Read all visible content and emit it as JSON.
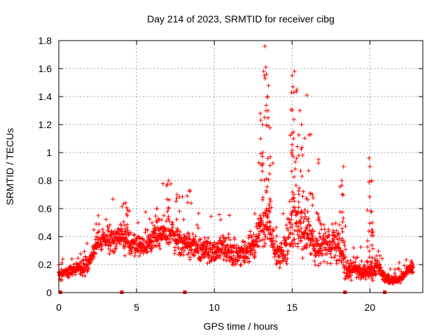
{
  "chart_data": {
    "type": "scatter",
    "title": "Day 214 of 2023, SRMTID for receiver cibg",
    "xlabel": "GPS time / hours",
    "ylabel": "SRMTID / TECUs",
    "xlim": [
      0,
      23.4
    ],
    "ylim": [
      0,
      1.8
    ],
    "xticks": [
      0,
      5,
      10,
      15,
      20
    ],
    "yticks": [
      0,
      0.2,
      0.4,
      0.6,
      0.8,
      1,
      1.2,
      1.4,
      1.6,
      1.8
    ],
    "ytick_labels": [
      "0",
      "0.2",
      "0.4",
      "0.6",
      "0.8",
      "1",
      "1.2",
      "1.4",
      "1.6",
      "1.8"
    ],
    "grid": true,
    "marker": "plus",
    "color": "#ff0000",
    "gap_markers_x": [
      0.1,
      4.05,
      8.1,
      18.4,
      20.95
    ],
    "envelope": {
      "hours": [
        0,
        0.5,
        1,
        1.5,
        2,
        2.5,
        3,
        3.5,
        4,
        4.5,
        5,
        5.5,
        6,
        6.5,
        7,
        7.5,
        8,
        8.5,
        9,
        9.5,
        10,
        10.5,
        11,
        11.5,
        12,
        12.5,
        13,
        13.5,
        14,
        14.5,
        15,
        15.5,
        16,
        16.5,
        17,
        17.5,
        18,
        18.5,
        19,
        19.5,
        20,
        20.5,
        21,
        21.5,
        22,
        22.5
      ],
      "median": [
        0.13,
        0.14,
        0.16,
        0.18,
        0.22,
        0.36,
        0.37,
        0.38,
        0.4,
        0.36,
        0.33,
        0.33,
        0.38,
        0.42,
        0.45,
        0.38,
        0.35,
        0.33,
        0.3,
        0.3,
        0.3,
        0.32,
        0.3,
        0.26,
        0.3,
        0.35,
        0.45,
        0.5,
        0.25,
        0.3,
        0.55,
        0.45,
        0.4,
        0.3,
        0.35,
        0.35,
        0.35,
        0.15,
        0.18,
        0.15,
        0.15,
        0.18,
        0.1,
        0.08,
        0.1,
        0.17
      ],
      "spread": [
        0.05,
        0.05,
        0.06,
        0.07,
        0.08,
        0.1,
        0.12,
        0.12,
        0.12,
        0.12,
        0.12,
        0.12,
        0.12,
        0.14,
        0.15,
        0.13,
        0.12,
        0.12,
        0.12,
        0.12,
        0.12,
        0.12,
        0.12,
        0.12,
        0.12,
        0.14,
        0.2,
        0.22,
        0.12,
        0.15,
        0.3,
        0.22,
        0.18,
        0.15,
        0.16,
        0.18,
        0.2,
        0.08,
        0.08,
        0.08,
        0.1,
        0.08,
        0.05,
        0.04,
        0.05,
        0.05
      ]
    },
    "peaks": [
      {
        "x": 2.4,
        "y": 0.49
      },
      {
        "x": 4.3,
        "y": 0.64
      },
      {
        "x": 6.3,
        "y": 0.6
      },
      {
        "x": 7.05,
        "y": 0.8
      },
      {
        "x": 7.6,
        "y": 0.7
      },
      {
        "x": 8.4,
        "y": 0.73
      },
      {
        "x": 12.95,
        "y": 1.28
      },
      {
        "x": 13.1,
        "y": 1.2
      },
      {
        "x": 13.25,
        "y": 1.76
      },
      {
        "x": 13.3,
        "y": 1.61
      },
      {
        "x": 13.35,
        "y": 1.56
      },
      {
        "x": 13.45,
        "y": 1.3
      },
      {
        "x": 13.6,
        "y": 0.97
      },
      {
        "x": 15.0,
        "y": 1.55
      },
      {
        "x": 15.05,
        "y": 1.47
      },
      {
        "x": 15.15,
        "y": 1.58
      },
      {
        "x": 15.3,
        "y": 1.45
      },
      {
        "x": 15.5,
        "y": 1.3
      },
      {
        "x": 15.6,
        "y": 1.2
      },
      {
        "x": 15.95,
        "y": 1.41
      },
      {
        "x": 16.2,
        "y": 1.13
      },
      {
        "x": 16.7,
        "y": 0.95
      },
      {
        "x": 18.3,
        "y": 0.9
      },
      {
        "x": 18.2,
        "y": 0.8
      },
      {
        "x": 19.95,
        "y": 0.96
      },
      {
        "x": 20.0,
        "y": 0.9
      },
      {
        "x": 20.1,
        "y": 0.8
      },
      {
        "x": 20.15,
        "y": 0.5
      }
    ],
    "seed": 214
  }
}
